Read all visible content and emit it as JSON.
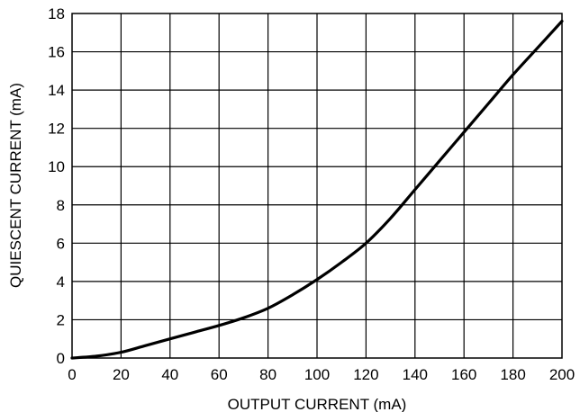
{
  "chart_data": {
    "type": "line",
    "title": "",
    "xlabel": "OUTPUT CURRENT (mA)",
    "ylabel": "QUIESCENT CURRENT (mA)",
    "xlim": [
      0,
      200
    ],
    "ylim": [
      0,
      18
    ],
    "x_ticks": [
      "0",
      "20",
      "40",
      "60",
      "80",
      "100",
      "120",
      "140",
      "160",
      "180",
      "200"
    ],
    "y_ticks": [
      "0",
      "2",
      "4",
      "6",
      "8",
      "10",
      "12",
      "14",
      "16",
      "18"
    ],
    "x_tick_values": [
      0,
      20,
      40,
      60,
      80,
      100,
      120,
      140,
      160,
      180,
      200
    ],
    "y_tick_values": [
      0,
      2,
      4,
      6,
      8,
      10,
      12,
      14,
      16,
      18
    ],
    "grid": true,
    "legend": "none",
    "series": [
      {
        "x": [
          0,
          10,
          20,
          30,
          40,
          50,
          60,
          70,
          80,
          90,
          100,
          110,
          120,
          130,
          140,
          150,
          160,
          170,
          180,
          190,
          200
        ],
        "y": [
          0.0,
          0.1,
          0.3,
          0.65,
          1.0,
          1.35,
          1.7,
          2.1,
          2.6,
          3.3,
          4.1,
          5.0,
          6.0,
          7.3,
          8.8,
          10.3,
          11.8,
          13.3,
          14.8,
          16.2,
          17.6
        ],
        "color": "#000000"
      }
    ]
  }
}
